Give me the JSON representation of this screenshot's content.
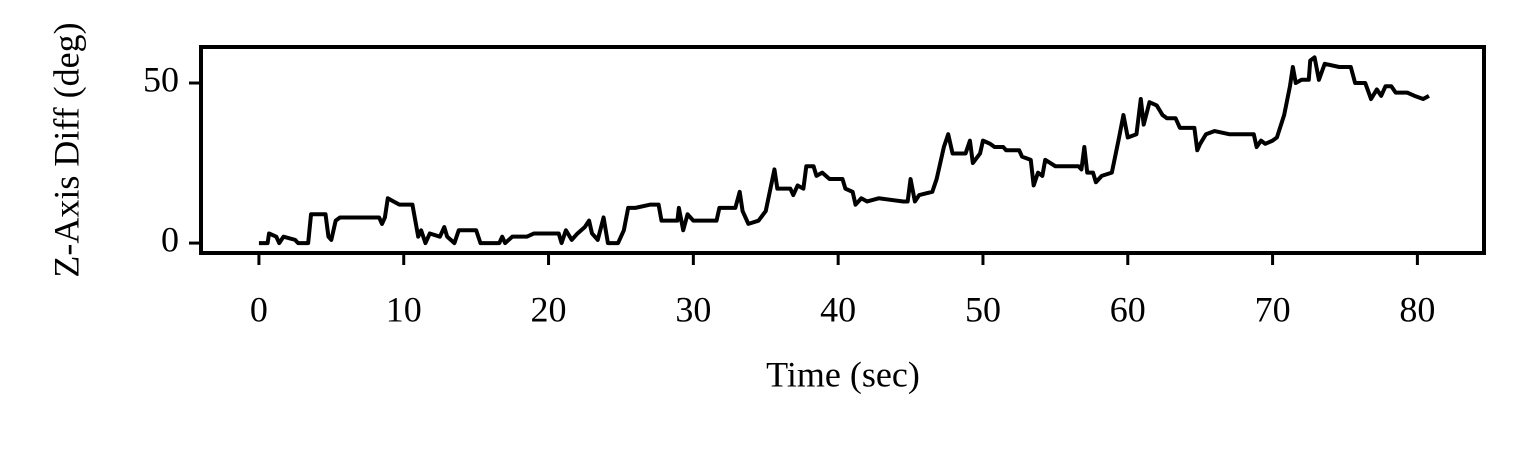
{
  "chart_data": {
    "type": "line",
    "x_label": "Time (sec)",
    "y_label": "Z-Axis Diff (deg)",
    "xlim": [
      -4.0,
      84.6
    ],
    "ylim": [
      -3.1,
      61.25
    ],
    "xticks": [
      0,
      10,
      20,
      30,
      40,
      50,
      60,
      70,
      80
    ],
    "yticks": [
      0,
      50
    ],
    "series": [
      {
        "color": "#000000",
        "x": [
          0,
          0.6,
          0.7,
          1.2,
          1.4,
          1.7,
          2.5,
          2.7,
          3.4,
          3.6,
          4.6,
          4.8,
          5.0,
          5.3,
          5.6,
          8.3,
          8.5,
          8.7,
          8.9,
          9.3,
          9.7,
          10.6,
          11.0,
          11.2,
          11.5,
          11.8,
          12.5,
          12.8,
          13.0,
          13.5,
          13.8,
          15.0,
          15.3,
          16.6,
          16.8,
          17.0,
          17.5,
          18.5,
          19.0,
          20.7,
          20.9,
          21.2,
          21.6,
          22.0,
          22.5,
          22.8,
          23.0,
          23.4,
          23.8,
          24.1,
          24.8,
          25.2,
          25.5,
          26.0,
          27.0,
          27.6,
          27.8,
          28.9,
          29.0,
          29.3,
          29.6,
          30.0,
          31.6,
          31.8,
          32.9,
          33.2,
          33.4,
          33.8,
          34.5,
          35.0,
          35.6,
          35.8,
          36.7,
          36.9,
          37.2,
          37.6,
          37.8,
          38.3,
          38.5,
          38.9,
          39.4,
          40.3,
          40.5,
          41.0,
          41.2,
          41.6,
          42.0,
          42.8,
          44.5,
          44.8,
          45.0,
          45.3,
          45.6,
          46.5,
          46.8,
          47.3,
          47.6,
          47.9,
          48.8,
          49.1,
          49.3,
          49.8,
          50.0,
          50.5,
          50.8,
          51.4,
          51.6,
          52.5,
          52.7,
          53.3,
          53.5,
          53.8,
          54.1,
          54.3,
          55.0,
          56.6,
          56.8,
          57.0,
          57.2,
          57.6,
          57.8,
          58.2,
          58.9,
          59.4,
          59.7,
          60.0,
          60.6,
          60.9,
          61.1,
          61.5,
          62.0,
          62.4,
          62.7,
          63.3,
          63.6,
          64.6,
          64.8,
          65.0,
          65.4,
          66.0,
          67.0,
          68.7,
          68.9,
          69.2,
          69.5,
          70.0,
          70.3,
          70.8,
          71.2,
          71.4,
          71.6,
          72.0,
          72.5,
          72.6,
          72.9,
          73.2,
          73.6,
          74.6,
          75.4,
          75.7,
          76.4,
          76.8,
          77.2,
          77.5,
          77.8,
          78.2,
          78.5,
          79.3,
          79.8,
          80.4,
          80.8
        ],
        "values": [
          0,
          0,
          3,
          2,
          0,
          2,
          1,
          0,
          0,
          9,
          9,
          2,
          1,
          7,
          8,
          8,
          6,
          8,
          14,
          13,
          12,
          12,
          2,
          4,
          0,
          3,
          2,
          5,
          2,
          0,
          4,
          4,
          0,
          0,
          2,
          0,
          2,
          2,
          3,
          3,
          0,
          4,
          1,
          3,
          5,
          7,
          3,
          1,
          8,
          0,
          0,
          4,
          11,
          11,
          12,
          12,
          7,
          7,
          11,
          4,
          9,
          7,
          7,
          11,
          11,
          16,
          10,
          6,
          7,
          10,
          23,
          17,
          17,
          15,
          18,
          17,
          24,
          24,
          21,
          22,
          20,
          20,
          17,
          16,
          12,
          14,
          13,
          14,
          13,
          13,
          20,
          13,
          15,
          16,
          20,
          30,
          34,
          28,
          28,
          32,
          25,
          28,
          32,
          31,
          30,
          30,
          29,
          29,
          27,
          26,
          18,
          22,
          21,
          26,
          24,
          24,
          23,
          30,
          22,
          22,
          19,
          21,
          22,
          33,
          40,
          33,
          34,
          45,
          37,
          44,
          43,
          40,
          39,
          39,
          36,
          36,
          29,
          31,
          34,
          35,
          34,
          34,
          30,
          32,
          31,
          32,
          33,
          40,
          49,
          55,
          50,
          51,
          51,
          57,
          58,
          51,
          56,
          55,
          55,
          50,
          50,
          45,
          48,
          46,
          49,
          49,
          47,
          47,
          46,
          45,
          46
        ]
      }
    ]
  }
}
